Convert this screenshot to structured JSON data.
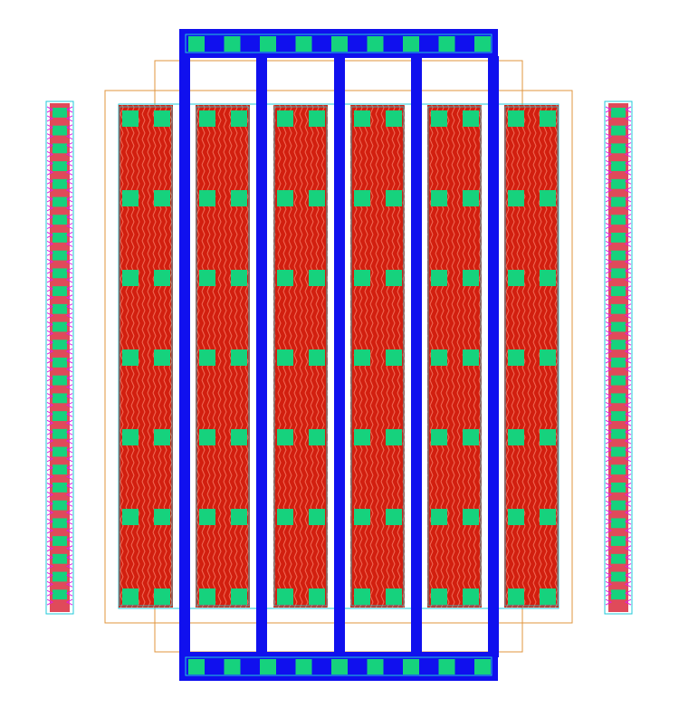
{
  "layout_view": {
    "colors": {
      "background": "#ffffff",
      "diffusion": "#d21f0f",
      "diffusion_hatch": "#f06a55",
      "contact": "#16d27d",
      "metal1": "#1010ee",
      "outline_orange": "#e0943c",
      "outline_cyan": "#22c8d8",
      "pin_magenta": "#e020e0",
      "guard_ring_fill": "#e04a5a"
    },
    "structure": {
      "diffusion_fingers": 6,
      "metal_gate_fingers": 5,
      "contact_rows_per_finger": 7,
      "contacts_per_row": 2,
      "top_bus_contacts": 9,
      "bottom_bus_contacts": 9,
      "guard_ring_contacts_per_side": 28
    }
  }
}
